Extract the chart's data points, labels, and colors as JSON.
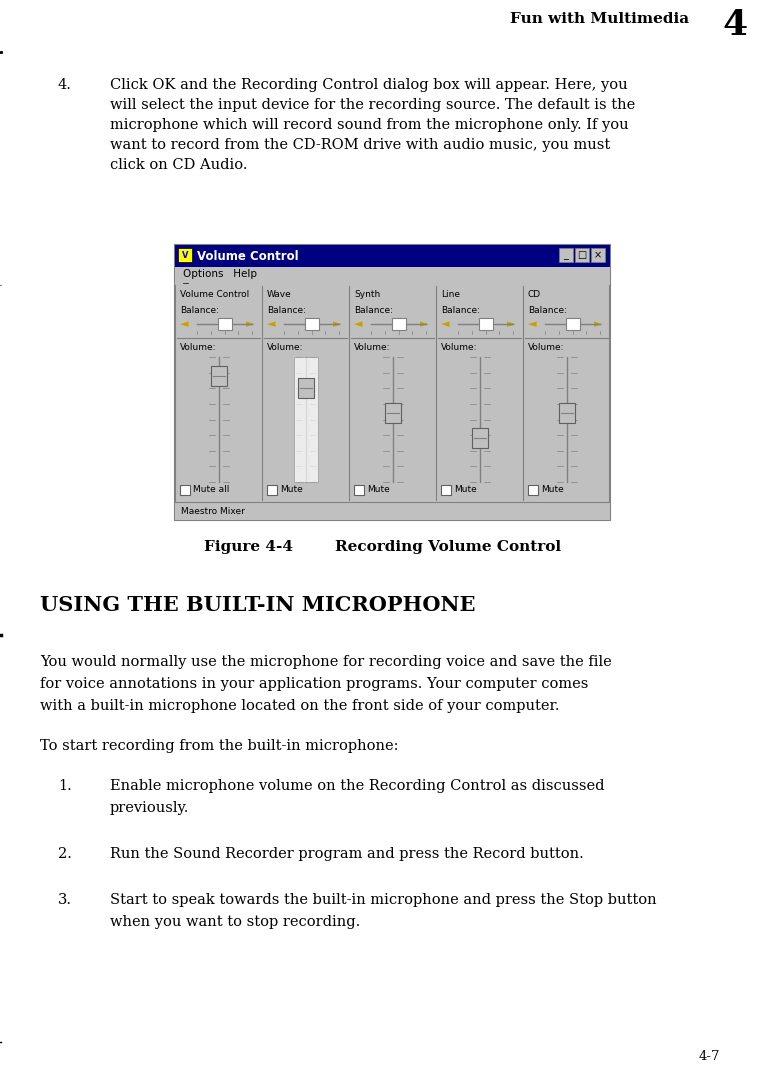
{
  "bg_color": "#ffffff",
  "header_text": "Fun with Multimedia",
  "header_number": "4",
  "page_number": "4-7",
  "paragraph4_num": "4.",
  "paragraph4_lines": [
    "Click OK and the Recording Control dialog box will appear. Here, you",
    "will select the input device for the recording source. The default is the",
    "microphone which will record sound from the microphone only. If you",
    "want to record from the CD-ROM drive with audio music, you must",
    "click on CD Audio."
  ],
  "figure_caption": "Figure 4-4        Recording Volume Control",
  "section_title": "Using the Built-in Microphone",
  "section_title_display": "USING THE BUILT-IN MICROPHONE",
  "para1_lines": [
    "You would normally use the microphone for recording voice and save the file",
    "for voice annotations in your application programs. Your computer comes",
    "with a built-in microphone located on the front side of your computer."
  ],
  "para2_line": "To start recording from the built-in microphone:",
  "list_items": [
    {
      "num": "1.",
      "lines": [
        "Enable microphone volume on the Recording Control as discussed",
        "previously."
      ]
    },
    {
      "num": "2.",
      "lines": [
        "Run the Sound Recorder program and press the Record button."
      ]
    },
    {
      "num": "3.",
      "lines": [
        "Start to speak towards the built-in microphone and press the Stop button",
        "when you want to stop recording."
      ]
    }
  ],
  "dialog": {
    "title": "Volume Control",
    "menu": "Options   Help",
    "cols": [
      "Volume Control",
      "Wave",
      "Synth",
      "Line",
      "CD"
    ],
    "title_bar_color": "#000080",
    "bg_color": "#c0c0c0",
    "text_color": "#000000"
  }
}
